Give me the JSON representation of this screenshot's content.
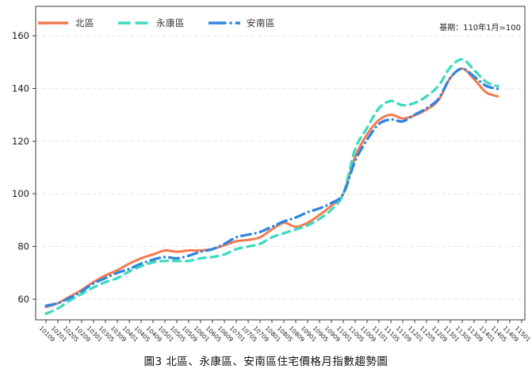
{
  "figure": {
    "caption": "圖3 北區、永康區、安南區住宅價格月指數趨勢圖",
    "base_period_note": "基期：110年1月=100"
  },
  "colors": {
    "bei_qu": "#F4794F",
    "yongkang_qu": "#3DD9C0",
    "annan_qu": "#2E86DE",
    "grid": "#E2E2E2",
    "axis": "#3a3a3a"
  },
  "chart_data": {
    "type": "line",
    "title": "圖3 北區、永康區、安南區住宅價格月指數趨勢圖",
    "note": "基期：110年1月=100",
    "x_axis_unit": "民國年月 (YYYMM)",
    "x_tick_labels": [
      "10109",
      "10201",
      "10205",
      "10209",
      "10301",
      "10305",
      "10309",
      "10401",
      "10405",
      "10409",
      "10501",
      "10505",
      "10509",
      "10601",
      "10605",
      "10609",
      "10701",
      "10705",
      "10709",
      "10801",
      "10805",
      "10809",
      "10901",
      "10905",
      "10909",
      "11001",
      "11005",
      "11009",
      "11101",
      "11105",
      "11109",
      "11201",
      "11205",
      "11209",
      "11301",
      "11305",
      "11309",
      "11401",
      "11405",
      "11409",
      "11501"
    ],
    "yticks": [
      60,
      80,
      100,
      120,
      140,
      160
    ],
    "ylim": [
      52,
      171
    ],
    "grid": "horizontal-dashed",
    "legend_position": "top-left",
    "series": [
      {
        "name": "北區",
        "style": "solid",
        "color": "#F4794F",
        "values": [
          57,
          58.5,
          61,
          63.5,
          66.5,
          69,
          71,
          73.5,
          75.5,
          77,
          78.5,
          78,
          78.5,
          78.5,
          79,
          80.5,
          82,
          82.5,
          83.5,
          86.5,
          89,
          87.5,
          89,
          92,
          95.5,
          100,
          114,
          122.5,
          128,
          130,
          128.6,
          129.8,
          132,
          135.5,
          144,
          147.5,
          143.5,
          138.5,
          137
        ]
      },
      {
        "name": "永康區",
        "style": "dashed",
        "color": "#3DD9C0",
        "values": [
          54.5,
          56.5,
          59.5,
          62,
          64.5,
          66.5,
          68,
          70.5,
          72.5,
          74,
          74.5,
          74.5,
          74.5,
          75.5,
          76,
          77,
          79,
          80,
          81,
          83.5,
          85,
          86.5,
          88,
          90.5,
          94,
          100,
          117,
          125,
          132.5,
          135.2,
          133.6,
          134.5,
          137,
          141,
          148,
          151,
          147,
          142.5,
          140.8
        ]
      },
      {
        "name": "安南區",
        "style": "dash-dot",
        "color": "#2E86DE",
        "values": [
          57.5,
          58.5,
          60.5,
          63,
          66,
          68,
          70,
          71.5,
          73.5,
          75,
          76,
          75.5,
          76.5,
          78,
          79,
          81,
          83.5,
          84.5,
          85.5,
          87.5,
          89.5,
          91,
          93,
          94.5,
          96.5,
          100,
          112.5,
          120.5,
          126.5,
          128.2,
          127.5,
          130,
          132.5,
          136,
          144,
          147.5,
          144.5,
          141,
          139.8
        ]
      }
    ]
  }
}
